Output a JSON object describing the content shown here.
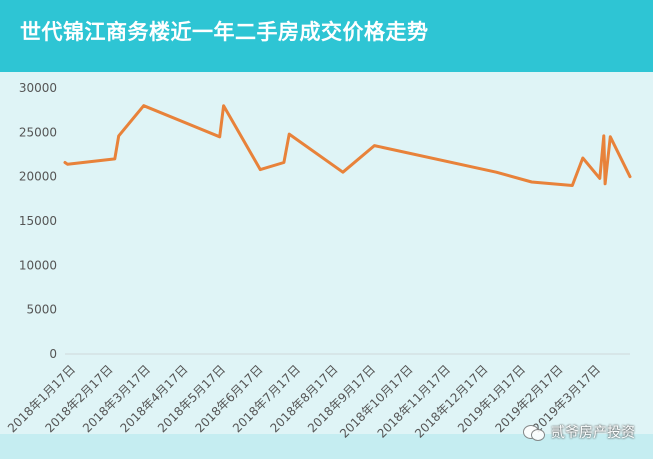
{
  "header": {
    "title": "世代锦江商务楼近一年二手房成交价格走势"
  },
  "watermark": {
    "text": "贰爷房产投资",
    "icon": "wechat-icon"
  },
  "colors": {
    "header_bg": "#2ec5d4",
    "plot_bg": "#dff4f6",
    "line": "#e8823a",
    "axis_text": "#555555"
  },
  "chart_data": {
    "type": "line",
    "title": "世代锦江商务楼近一年二手房成交价格走势",
    "xlabel": "",
    "ylabel": "",
    "ylim": [
      0,
      30000
    ],
    "yticks": [
      0,
      5000,
      10000,
      15000,
      20000,
      25000,
      30000
    ],
    "grid": false,
    "x_tick_labels": [
      "2018年1月17日",
      "2018年2月17日",
      "2018年3月17日",
      "2018年4月17日",
      "2018年5月17日",
      "2018年6月17日",
      "2018年7月17日",
      "2018年8月17日",
      "2018年9月17日",
      "2018年10月17日",
      "2018年11月17日",
      "2018年12月17日",
      "2019年1月17日",
      "2019年2月17日",
      "2019年3月17日"
    ],
    "series": [
      {
        "points": [
          {
            "x": "2018-01-17",
            "y": 21600
          },
          {
            "x": "2018-01-19",
            "y": 21400
          },
          {
            "x": "2018-02-24",
            "y": 22000
          },
          {
            "x": "2018-02-27",
            "y": 24600
          },
          {
            "x": "2018-03-18",
            "y": 28000
          },
          {
            "x": "2018-05-15",
            "y": 24500
          },
          {
            "x": "2018-05-18",
            "y": 28000
          },
          {
            "x": "2018-06-15",
            "y": 20800
          },
          {
            "x": "2018-07-03",
            "y": 21600
          },
          {
            "x": "2018-07-07",
            "y": 24800
          },
          {
            "x": "2018-08-17",
            "y": 20500
          },
          {
            "x": "2018-09-10",
            "y": 23500
          },
          {
            "x": "2018-12-12",
            "y": 20500
          },
          {
            "x": "2019-01-08",
            "y": 19400
          },
          {
            "x": "2019-02-08",
            "y": 19000
          },
          {
            "x": "2019-02-16",
            "y": 22100
          },
          {
            "x": "2019-03-01",
            "y": 19800
          },
          {
            "x": "2019-03-04",
            "y": 24600
          },
          {
            "x": "2019-03-05",
            "y": 19200
          },
          {
            "x": "2019-03-09",
            "y": 24500
          },
          {
            "x": "2019-03-24",
            "y": 20000
          }
        ]
      }
    ]
  }
}
